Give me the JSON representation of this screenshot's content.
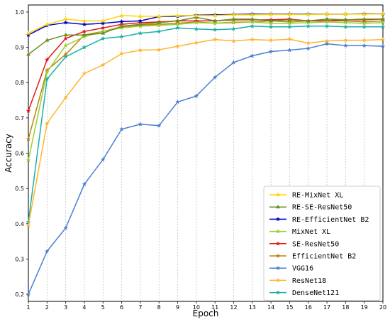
{
  "chart_data": {
    "type": "line",
    "title": "",
    "xlabel": "Epoch",
    "ylabel": "Accuracy",
    "xlim": [
      1,
      20
    ],
    "ylim": [
      0.18,
      1.02
    ],
    "x": [
      1,
      2,
      3,
      4,
      5,
      6,
      7,
      8,
      9,
      10,
      11,
      12,
      13,
      14,
      15,
      16,
      17,
      18,
      19,
      20
    ],
    "x_ticks": [
      "1",
      "2",
      "3",
      "4",
      "5",
      "6",
      "7",
      "8",
      "9",
      "10",
      "11",
      "12",
      "13",
      "14",
      "15",
      "16",
      "17",
      "18",
      "19",
      "20"
    ],
    "y_ticks": [
      0.2,
      0.3,
      0.4,
      0.5,
      0.6,
      0.7,
      0.8,
      0.9,
      1.0
    ],
    "y_tick_labels": [
      "0.2",
      "0.3",
      "0.4",
      "0.5",
      "0.6",
      "0.7",
      "0.8",
      "0.9",
      "1.0"
    ],
    "grid": "vertical dashed",
    "legend_position": "lower-right",
    "series": [
      {
        "name": "RE-MixNet XL",
        "color": "#ffd700",
        "marker": "triangle",
        "values": [
          0.94,
          0.965,
          0.98,
          0.975,
          0.975,
          0.99,
          0.988,
          0.988,
          0.99,
          0.99,
          0.99,
          0.992,
          0.992,
          0.993,
          0.993,
          0.993,
          0.994,
          0.994,
          0.994,
          0.995
        ]
      },
      {
        "name": "RE-SE-ResNet50",
        "color": "#6b8e23",
        "marker": "triangle",
        "values": [
          0.88,
          0.92,
          0.935,
          0.935,
          0.94,
          0.96,
          0.965,
          0.97,
          0.975,
          0.985,
          0.975,
          0.98,
          0.98,
          0.975,
          0.978,
          0.975,
          0.98,
          0.978,
          0.98,
          0.98
        ]
      },
      {
        "name": "RE-EfficientNet B2",
        "color": "#0000cd",
        "marker": "star",
        "values": [
          0.935,
          0.962,
          0.97,
          0.965,
          0.968,
          0.973,
          0.975,
          0.987,
          0.988,
          0.991,
          0.992,
          0.993,
          0.994,
          0.994,
          0.994,
          0.994,
          0.994,
          0.994,
          0.995,
          0.995
        ]
      },
      {
        "name": "MixNet XL",
        "color": "#9acd32",
        "marker": "star",
        "values": [
          0.58,
          0.83,
          0.905,
          0.93,
          0.945,
          0.955,
          0.96,
          0.962,
          0.965,
          0.97,
          0.968,
          0.972,
          0.972,
          0.968,
          0.968,
          0.97,
          0.972,
          0.97,
          0.968,
          0.97
        ]
      },
      {
        "name": "SE-ResNet50",
        "color": "#e31a1c",
        "marker": "star",
        "values": [
          0.72,
          0.865,
          0.925,
          0.945,
          0.955,
          0.965,
          0.97,
          0.972,
          0.975,
          0.975,
          0.975,
          0.978,
          0.978,
          0.978,
          0.98,
          0.975,
          0.975,
          0.978,
          0.978,
          0.98
        ]
      },
      {
        "name": "EfficientNet B2",
        "color": "#b8860b",
        "marker": "star",
        "values": [
          0.64,
          0.835,
          0.88,
          0.935,
          0.945,
          0.958,
          0.963,
          0.965,
          0.968,
          0.972,
          0.968,
          0.97,
          0.972,
          0.975,
          0.972,
          0.975,
          0.975,
          0.975,
          0.972,
          0.975
        ]
      },
      {
        "name": "VGG16",
        "color": "#4a7fd1",
        "marker": "star",
        "values": [
          0.2,
          0.322,
          0.388,
          0.512,
          0.582,
          0.668,
          0.682,
          0.678,
          0.745,
          0.762,
          0.815,
          0.857,
          0.876,
          0.888,
          0.892,
          0.897,
          0.91,
          0.905,
          0.905,
          0.903
        ]
      },
      {
        "name": "ResNet18",
        "color": "#ffb52e",
        "marker": "star",
        "values": [
          0.395,
          0.684,
          0.758,
          0.826,
          0.85,
          0.882,
          0.892,
          0.893,
          0.903,
          0.913,
          0.922,
          0.918,
          0.922,
          0.92,
          0.923,
          0.912,
          0.918,
          0.92,
          0.92,
          0.922
        ]
      },
      {
        "name": "DenseNet121",
        "color": "#1ab0a8",
        "marker": "star",
        "values": [
          0.405,
          0.81,
          0.873,
          0.9,
          0.925,
          0.93,
          0.94,
          0.945,
          0.955,
          0.952,
          0.95,
          0.952,
          0.96,
          0.958,
          0.958,
          0.96,
          0.96,
          0.958,
          0.958,
          0.958
        ]
      }
    ]
  }
}
